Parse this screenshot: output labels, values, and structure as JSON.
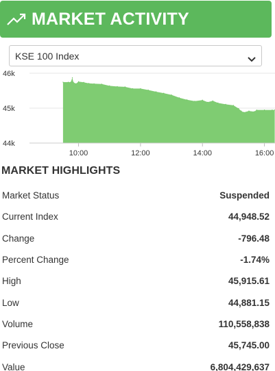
{
  "header": {
    "title": "MARKET ACTIVITY",
    "icon": "trending-up-icon",
    "color": "#5cb85c"
  },
  "index_selector": {
    "selected": "KSE 100 Index"
  },
  "chart_data": {
    "type": "area",
    "color": "#7fcc72",
    "y_ticks": [
      "46k",
      "45k",
      "44k"
    ],
    "x_ticks": [
      "10:00",
      "12:00",
      "14:00",
      "16:00"
    ],
    "ylim": [
      44000,
      46000
    ],
    "grid": true,
    "x": [
      "09:30",
      "09:40",
      "09:45",
      "09:48",
      "09:50",
      "09:55",
      "10:00",
      "10:10",
      "10:20",
      "10:30",
      "10:45",
      "11:00",
      "11:15",
      "11:30",
      "11:45",
      "12:00",
      "12:15",
      "12:30",
      "12:45",
      "13:00",
      "13:15",
      "13:30",
      "13:45",
      "14:00",
      "14:10",
      "14:20",
      "14:30",
      "14:45",
      "15:00",
      "15:10",
      "15:15",
      "15:20",
      "15:30",
      "15:40",
      "15:45",
      "16:00",
      "16:15",
      "16:20"
    ],
    "values": [
      45745,
      45745,
      45745,
      45870,
      45740,
      45700,
      45760,
      45740,
      45710,
      45700,
      45690,
      45640,
      45620,
      45610,
      45560,
      45560,
      45520,
      45470,
      45430,
      45380,
      45300,
      45240,
      45200,
      45230,
      45170,
      45210,
      45150,
      45110,
      45080,
      44990,
      44920,
      44880,
      44920,
      44900,
      44950,
      44950,
      44950,
      44950
    ]
  },
  "highlights": {
    "title": "MARKET HIGHLIGHTS",
    "rows": [
      {
        "label": "Market Status",
        "value": "Suspended"
      },
      {
        "label": "Current Index",
        "value": "44,948.52"
      },
      {
        "label": "Change",
        "value": "-796.48"
      },
      {
        "label": "Percent Change",
        "value": "-1.74%"
      },
      {
        "label": "High",
        "value": "45,915.61"
      },
      {
        "label": "Low",
        "value": "44,881.15"
      },
      {
        "label": "Volume",
        "value": "110,558,838"
      },
      {
        "label": "Previous Close",
        "value": "45,745.00"
      },
      {
        "label": "Value",
        "value": "6,804,429,637"
      }
    ]
  }
}
